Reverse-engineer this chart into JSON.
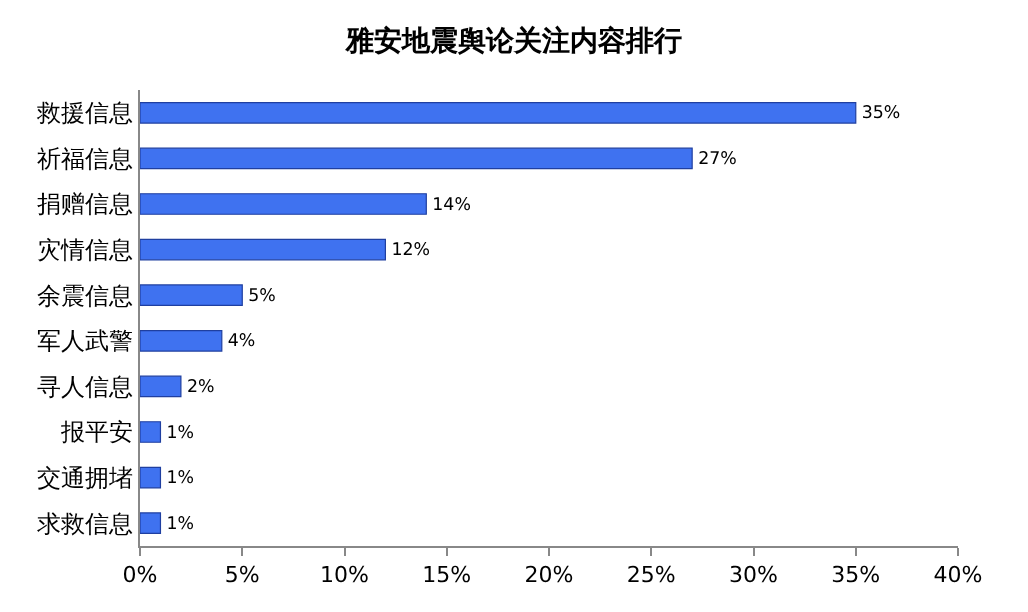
{
  "chart_data": {
    "type": "bar",
    "orientation": "horizontal",
    "title": "雅安地震舆论关注内容排行",
    "categories": [
      "救援信息",
      "祈福信息",
      "捐赠信息",
      "灾情信息",
      "余震信息",
      "军人武警",
      "寻人信息",
      "报平安",
      "交通拥堵",
      "求救信息"
    ],
    "values": [
      35,
      27,
      14,
      12,
      5,
      4,
      2,
      1,
      1,
      1
    ],
    "value_labels": [
      "35%",
      "27%",
      "14%",
      "12%",
      "5%",
      "4%",
      "2%",
      "1%",
      "1%",
      "1%"
    ],
    "color": "#3f72f0",
    "xlim": [
      0,
      40
    ],
    "xticks": [
      {
        "value": 0,
        "label": "0%"
      },
      {
        "value": 5,
        "label": "5%"
      },
      {
        "value": 10,
        "label": "10%"
      },
      {
        "value": 15,
        "label": "15%"
      },
      {
        "value": 20,
        "label": "20%"
      },
      {
        "value": 25,
        "label": "25%"
      },
      {
        "value": 30,
        "label": "30%"
      },
      {
        "value": 35,
        "label": "35%"
      },
      {
        "value": 40,
        "label": "40%"
      }
    ]
  }
}
